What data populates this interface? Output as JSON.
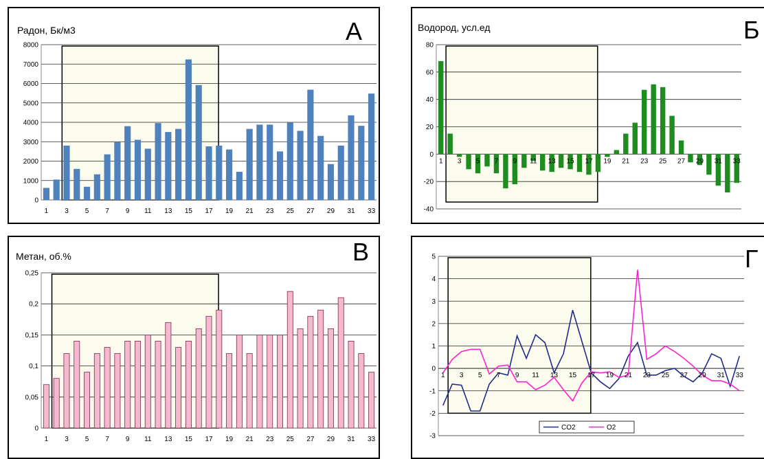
{
  "chart_data": [
    {
      "panel": "A",
      "type": "bar",
      "title": "Радон, Бк/м3",
      "ylim": [
        0,
        8000
      ],
      "yticks": [
        0,
        1000,
        2000,
        3000,
        4000,
        5000,
        6000,
        7000,
        8000
      ],
      "categories": [
        1,
        2,
        3,
        4,
        5,
        6,
        7,
        8,
        9,
        10,
        11,
        12,
        13,
        14,
        15,
        16,
        17,
        18,
        19,
        20,
        21,
        22,
        23,
        24,
        25,
        26,
        27,
        28,
        29,
        30,
        31,
        32,
        33
      ],
      "xtick_labels": [
        "1",
        "3",
        "5",
        "7",
        "9",
        "11",
        "13",
        "15",
        "17",
        "19",
        "21",
        "23",
        "25",
        "27",
        "29",
        "31",
        "33"
      ],
      "values": [
        620,
        1050,
        2800,
        1600,
        680,
        1320,
        2350,
        2980,
        3800,
        3100,
        2640,
        3960,
        3500,
        3660,
        7240,
        5920,
        2760,
        2800,
        2600,
        1450,
        3660,
        3880,
        3880,
        2500,
        3980,
        3560,
        5680,
        3300,
        1850,
        2800,
        4360,
        3820,
        5480
      ],
      "bar_color": "#4f81bd",
      "highlight_range": [
        3,
        18
      ],
      "grid": true
    },
    {
      "panel": "Б",
      "type": "bar",
      "title": "Водород, усл.ед",
      "ylim": [
        -40,
        80
      ],
      "yticks": [
        -40,
        -20,
        0,
        20,
        40,
        60,
        80
      ],
      "categories": [
        1,
        2,
        3,
        4,
        5,
        6,
        7,
        8,
        9,
        10,
        11,
        12,
        13,
        14,
        15,
        16,
        17,
        18,
        19,
        20,
        21,
        22,
        23,
        24,
        25,
        26,
        27,
        28,
        29,
        30,
        31,
        32,
        33
      ],
      "xtick_labels": [
        "1",
        "3",
        "5",
        "7",
        "9",
        "11",
        "13",
        "15",
        "17",
        "19",
        "21",
        "23",
        "25",
        "27",
        "29",
        "31",
        "33"
      ],
      "values": [
        68,
        15,
        -2,
        -11,
        -14,
        -9,
        -14,
        -25,
        -22,
        -10,
        -5,
        -12,
        -13,
        -10,
        -11,
        -13,
        -15,
        -13,
        -2,
        3,
        15,
        23,
        47,
        51,
        49,
        28,
        10,
        -6,
        -8,
        -15,
        -23,
        -28,
        -21
      ],
      "bar_color": "#1e8c1e",
      "highlight_range": [
        2,
        18
      ],
      "grid": true
    },
    {
      "panel": "В",
      "type": "bar",
      "title": "Метан, об.%",
      "ylim": [
        0,
        0.25
      ],
      "yticks": [
        "0",
        "0,05",
        "0,1",
        "0,15",
        "0,2",
        "0,25"
      ],
      "categories": [
        1,
        2,
        3,
        4,
        5,
        6,
        7,
        8,
        9,
        10,
        11,
        12,
        13,
        14,
        15,
        16,
        17,
        18,
        19,
        20,
        21,
        22,
        23,
        24,
        25,
        26,
        27,
        28,
        29,
        30,
        31,
        32,
        33
      ],
      "xtick_labels": [
        "1",
        "3",
        "5",
        "7",
        "9",
        "11",
        "13",
        "15",
        "17",
        "19",
        "21",
        "23",
        "25",
        "27",
        "29",
        "31",
        "33"
      ],
      "values": [
        0.07,
        0.08,
        0.12,
        0.14,
        0.09,
        0.12,
        0.13,
        0.12,
        0.14,
        0.14,
        0.15,
        0.14,
        0.17,
        0.13,
        0.14,
        0.16,
        0.18,
        0.19,
        0.12,
        0.15,
        0.12,
        0.15,
        0.15,
        0.15,
        0.22,
        0.16,
        0.18,
        0.19,
        0.16,
        0.21,
        0.14,
        0.12,
        0.09
      ],
      "bar_color": "#f4b8cf",
      "highlight_range": [
        2,
        18
      ],
      "grid": true
    },
    {
      "panel": "Г",
      "type": "line",
      "title": "",
      "ylim": [
        -3,
        5
      ],
      "yticks": [
        -3,
        -2,
        -1,
        0,
        1,
        2,
        3,
        4,
        5
      ],
      "x": [
        1,
        2,
        3,
        4,
        5,
        6,
        7,
        8,
        9,
        10,
        11,
        12,
        13,
        14,
        15,
        16,
        17,
        18,
        19,
        20,
        21,
        22,
        23,
        24,
        25,
        26,
        27,
        28,
        29,
        30,
        31,
        32,
        33
      ],
      "xtick_labels": [
        "1",
        "3",
        "5",
        "7",
        "9",
        "11",
        "13",
        "15",
        "17",
        "19",
        "21",
        "23",
        "25",
        "27",
        "29",
        "31",
        "33"
      ],
      "series": [
        {
          "name": "CO2",
          "color": "#1f2a8a",
          "values": [
            -1.65,
            -0.7,
            -0.75,
            -1.9,
            -1.9,
            -0.7,
            -0.2,
            -0.3,
            1.45,
            0.45,
            1.5,
            1.15,
            -0.2,
            0.65,
            2.6,
            1.2,
            -0.2,
            -0.6,
            -0.9,
            -0.45,
            0.55,
            1.15,
            -0.3,
            -0.3,
            -0.1,
            0.0,
            -0.35,
            -0.6,
            -0.2,
            0.65,
            0.45,
            -0.8,
            0.55
          ]
        },
        {
          "name": "O2",
          "color": "#ff1fd2",
          "values": [
            -0.2,
            0.4,
            0.75,
            0.85,
            0.85,
            -0.25,
            0.1,
            0.15,
            -0.6,
            -0.6,
            -0.95,
            -0.75,
            -0.4,
            -0.95,
            -1.45,
            -0.65,
            -0.15,
            -0.2,
            -0.15,
            -0.4,
            -0.3,
            4.4,
            0.4,
            0.65,
            1.0,
            0.75,
            0.45,
            0.1,
            -0.3,
            -0.55,
            -0.55,
            -0.7,
            -1.0
          ]
        }
      ],
      "highlight_range": [
        2,
        17
      ],
      "legend": "bottom-center",
      "grid": true
    }
  ],
  "panel_letters": [
    "А",
    "Б",
    "В",
    "Г"
  ]
}
